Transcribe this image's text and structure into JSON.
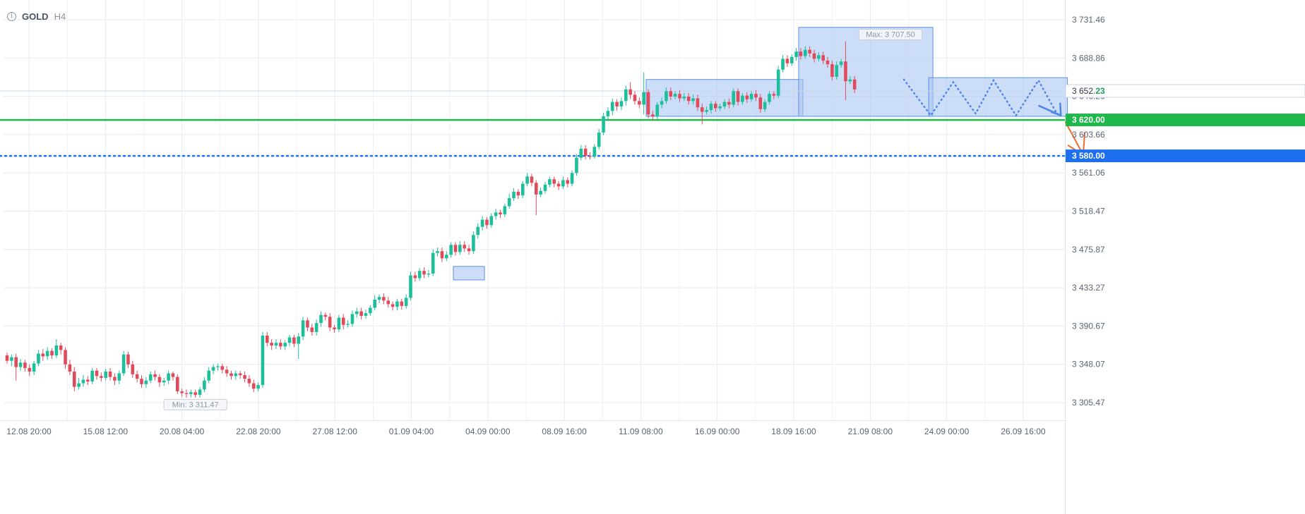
{
  "header": {
    "info_glyph": "i",
    "symbol": "GOLD",
    "timeframe": "H4"
  },
  "colors": {
    "bull": "#1bbf9a",
    "bear": "#e04b5c",
    "grid": "#e5ebf3",
    "axis_text": "#5b6473",
    "support": "#1fb84a",
    "target": "#1e6ff0",
    "box_fill": "#aac6f3",
    "box_stroke": "#5d8fe0",
    "projection": "#4f86e8",
    "arrow": "#f06a2c"
  },
  "chart_data": {
    "type": "candlestick",
    "ylim": [
      3280,
      3760
    ],
    "yticks": [
      {
        "value": 3731.46,
        "label": "3 731.46"
      },
      {
        "value": 3688.86,
        "label": "3 688.86"
      },
      {
        "value": 3646.26,
        "label": "3 646.26"
      },
      {
        "value": 3603.66,
        "label": "3 603.66"
      },
      {
        "value": 3561.06,
        "label": "3 561.06"
      },
      {
        "value": 3518.47,
        "label": "3 518.47"
      },
      {
        "value": 3475.87,
        "label": "3 475.87"
      },
      {
        "value": 3433.27,
        "label": "3 433.27"
      },
      {
        "value": 3390.67,
        "label": "3 390.67"
      },
      {
        "value": 3348.07,
        "label": "3 348.07"
      },
      {
        "value": 3305.47,
        "label": "3 305.47"
      }
    ],
    "xticks": [
      "12.08 20:00",
      "15.08 12:00",
      "20.08 04:00",
      "22.08 20:00",
      "27.08 12:00",
      "01.09 04:00",
      "04.09 00:00",
      "08.09 16:00",
      "11.09 08:00",
      "16.09 00:00",
      "18.09 16:00",
      "21.09 08:00",
      "24.09 00:00",
      "26.09 16:00"
    ],
    "current_price": {
      "value": 3652.23,
      "label_main": "3 652.",
      "label_tail": "23"
    },
    "levels": [
      {
        "name": "support",
        "value": 3620.0,
        "label": "3 620.00",
        "style": "solid"
      },
      {
        "name": "target",
        "value": 3580.0,
        "label": "3 580.00",
        "style": "dotted"
      }
    ],
    "max_marker": {
      "value": 3707.5,
      "label": "Max: 3 707.50",
      "bar": 197
    },
    "min_marker": {
      "value": 3311.47,
      "label": "Min: 3 311.47",
      "bar": 42
    },
    "boxes": [
      {
        "bar_start": 100,
        "bar_end": 106,
        "low": 3442,
        "high": 3457
      },
      {
        "bar_start": 143,
        "bar_end": 177,
        "low": 3624,
        "high": 3665
      },
      {
        "bar_start": 177,
        "bar_end": 206,
        "low": 3624,
        "high": 3723
      },
      {
        "bar_start": 206,
        "bar_end": 236,
        "low": 3624,
        "high": 3667
      }
    ],
    "projection_path": [
      [
        200,
        3665
      ],
      [
        206,
        3625
      ],
      [
        211,
        3662
      ],
      [
        216,
        3627
      ],
      [
        220,
        3664
      ],
      [
        225,
        3625
      ],
      [
        230,
        3664
      ],
      [
        234,
        3628
      ]
    ],
    "projection_arrow": {
      "from": [
        230,
        3636
      ],
      "to": [
        235,
        3625
      ]
    },
    "forecast_arrow": {
      "from": [
        236,
        3618
      ],
      "to": [
        240,
        3581
      ]
    },
    "candles": [
      [
        3358,
        3352,
        3361,
        3349
      ],
      [
        3352,
        3356,
        3359,
        3346
      ],
      [
        3356,
        3345,
        3360,
        3330
      ],
      [
        3345,
        3350,
        3354,
        3341
      ],
      [
        3350,
        3344,
        3353,
        3340
      ],
      [
        3344,
        3340,
        3348,
        3335
      ],
      [
        3340,
        3349,
        3352,
        3336
      ],
      [
        3349,
        3360,
        3364,
        3346
      ],
      [
        3360,
        3357,
        3365,
        3352
      ],
      [
        3357,
        3363,
        3367,
        3353
      ],
      [
        3363,
        3358,
        3366,
        3354
      ],
      [
        3358,
        3369,
        3376,
        3355
      ],
      [
        3369,
        3364,
        3372,
        3359
      ],
      [
        3364,
        3348,
        3367,
        3343
      ],
      [
        3348,
        3340,
        3353,
        3336
      ],
      [
        3340,
        3323,
        3345,
        3318
      ],
      [
        3323,
        3327,
        3333,
        3320
      ],
      [
        3327,
        3331,
        3336,
        3323
      ],
      [
        3331,
        3329,
        3335,
        3325
      ],
      [
        3329,
        3341,
        3344,
        3326
      ],
      [
        3341,
        3335,
        3344,
        3331
      ],
      [
        3335,
        3333,
        3339,
        3329
      ],
      [
        3333,
        3340,
        3343,
        3330
      ],
      [
        3340,
        3334,
        3344,
        3330
      ],
      [
        3334,
        3330,
        3338,
        3325
      ],
      [
        3330,
        3338,
        3341,
        3326
      ],
      [
        3338,
        3359,
        3363,
        3335
      ],
      [
        3359,
        3348,
        3362,
        3344
      ],
      [
        3348,
        3337,
        3352,
        3333
      ],
      [
        3337,
        3332,
        3341,
        3328
      ],
      [
        3332,
        3326,
        3336,
        3322
      ],
      [
        3326,
        3330,
        3334,
        3322
      ],
      [
        3330,
        3337,
        3340,
        3327
      ],
      [
        3337,
        3334,
        3341,
        3330
      ],
      [
        3334,
        3328,
        3337,
        3323
      ],
      [
        3328,
        3330,
        3333,
        3324
      ],
      [
        3330,
        3338,
        3341,
        3326
      ],
      [
        3338,
        3334,
        3340,
        3330
      ],
      [
        3334,
        3318,
        3337,
        3315
      ],
      [
        3318,
        3316,
        3321,
        3312
      ],
      [
        3316,
        3315,
        3320,
        3311
      ],
      [
        3315,
        3317,
        3320,
        3311.47
      ],
      [
        3317,
        3314,
        3320,
        3311
      ],
      [
        3314,
        3320,
        3323,
        3311
      ],
      [
        3320,
        3330,
        3334,
        3317
      ],
      [
        3330,
        3341,
        3345,
        3327
      ],
      [
        3341,
        3345,
        3348,
        3337
      ],
      [
        3345,
        3346,
        3349,
        3341
      ],
      [
        3346,
        3342,
        3349,
        3338
      ],
      [
        3342,
        3338,
        3346,
        3334
      ],
      [
        3338,
        3335,
        3341,
        3331
      ],
      [
        3335,
        3338,
        3341,
        3331
      ],
      [
        3338,
        3336,
        3341,
        3332
      ],
      [
        3336,
        3332,
        3340,
        3328
      ],
      [
        3332,
        3327,
        3336,
        3323
      ],
      [
        3327,
        3321,
        3331,
        3317
      ],
      [
        3321,
        3325,
        3328,
        3318
      ],
      [
        3325,
        3380,
        3384,
        3322
      ],
      [
        3380,
        3372,
        3384,
        3368
      ],
      [
        3372,
        3369,
        3376,
        3364
      ],
      [
        3369,
        3372,
        3376,
        3365
      ],
      [
        3372,
        3368,
        3376,
        3364
      ],
      [
        3368,
        3372,
        3375,
        3364
      ],
      [
        3372,
        3378,
        3381,
        3368
      ],
      [
        3378,
        3371,
        3381,
        3367
      ],
      [
        3371,
        3379,
        3383,
        3354
      ],
      [
        3379,
        3397,
        3401,
        3375
      ],
      [
        3397,
        3389,
        3400,
        3385
      ],
      [
        3389,
        3384,
        3393,
        3380
      ],
      [
        3384,
        3394,
        3398,
        3380
      ],
      [
        3394,
        3403,
        3407,
        3390
      ],
      [
        3403,
        3401,
        3406,
        3397
      ],
      [
        3401,
        3389,
        3405,
        3385
      ],
      [
        3389,
        3387,
        3392,
        3383
      ],
      [
        3387,
        3400,
        3403,
        3384
      ],
      [
        3400,
        3392,
        3404,
        3387
      ],
      [
        3392,
        3393,
        3397,
        3389
      ],
      [
        3393,
        3404,
        3408,
        3390
      ],
      [
        3404,
        3407,
        3411,
        3400
      ],
      [
        3407,
        3402,
        3411,
        3398
      ],
      [
        3402,
        3405,
        3409,
        3399
      ],
      [
        3405,
        3411,
        3414,
        3402
      ],
      [
        3411,
        3420,
        3425,
        3408
      ],
      [
        3420,
        3423,
        3426,
        3416
      ],
      [
        3423,
        3419,
        3427,
        3415
      ],
      [
        3419,
        3415,
        3423,
        3411
      ],
      [
        3415,
        3412,
        3418,
        3408
      ],
      [
        3412,
        3418,
        3421,
        3408
      ],
      [
        3418,
        3413,
        3421,
        3409
      ],
      [
        3413,
        3422,
        3426,
        3410
      ],
      [
        3422,
        3447,
        3451,
        3419
      ],
      [
        3447,
        3444,
        3451,
        3440
      ],
      [
        3444,
        3452,
        3455,
        3441
      ],
      [
        3452,
        3448,
        3456,
        3444
      ],
      [
        3448,
        3449,
        3453,
        3445
      ],
      [
        3449,
        3472,
        3476,
        3446
      ],
      [
        3472,
        3474,
        3478,
        3468
      ],
      [
        3474,
        3466,
        3478,
        3462
      ],
      [
        3466,
        3470,
        3474,
        3463
      ],
      [
        3470,
        3481,
        3484,
        3467
      ],
      [
        3481,
        3473,
        3484,
        3469
      ],
      [
        3473,
        3481,
        3485,
        3470
      ],
      [
        3481,
        3477,
        3485,
        3473
      ],
      [
        3477,
        3474,
        3481,
        3470
      ],
      [
        3474,
        3492,
        3496,
        3471
      ],
      [
        3492,
        3501,
        3505,
        3488
      ],
      [
        3501,
        3509,
        3513,
        3497
      ],
      [
        3509,
        3503,
        3512,
        3499
      ],
      [
        3503,
        3513,
        3516,
        3500
      ],
      [
        3513,
        3517,
        3521,
        3509
      ],
      [
        3517,
        3515,
        3520,
        3511
      ],
      [
        3515,
        3524,
        3527,
        3512
      ],
      [
        3524,
        3533,
        3538,
        3521
      ],
      [
        3533,
        3540,
        3544,
        3530
      ],
      [
        3540,
        3536,
        3543,
        3532
      ],
      [
        3536,
        3549,
        3552,
        3533
      ],
      [
        3549,
        3557,
        3561,
        3546
      ],
      [
        3557,
        3550,
        3560,
        3546
      ],
      [
        3550,
        3537,
        3553,
        3514
      ],
      [
        3537,
        3541,
        3545,
        3534
      ],
      [
        3541,
        3548,
        3551,
        3538
      ],
      [
        3548,
        3554,
        3557,
        3545
      ],
      [
        3554,
        3549,
        3557,
        3545
      ],
      [
        3549,
        3546,
        3552,
        3542
      ],
      [
        3546,
        3553,
        3557,
        3543
      ],
      [
        3553,
        3549,
        3556,
        3545
      ],
      [
        3549,
        3561,
        3564,
        3546
      ],
      [
        3561,
        3578,
        3582,
        3558
      ],
      [
        3578,
        3588,
        3592,
        3575
      ],
      [
        3588,
        3580,
        3592,
        3576
      ],
      [
        3580,
        3579,
        3584,
        3576
      ],
      [
        3579,
        3590,
        3593,
        3577
      ],
      [
        3590,
        3606,
        3610,
        3587
      ],
      [
        3606,
        3624,
        3628,
        3603
      ],
      [
        3624,
        3630,
        3634,
        3620
      ],
      [
        3630,
        3640,
        3644,
        3625
      ],
      [
        3640,
        3635,
        3643,
        3630
      ],
      [
        3635,
        3641,
        3645,
        3631
      ],
      [
        3641,
        3654,
        3658,
        3636
      ],
      [
        3654,
        3648,
        3662,
        3643
      ],
      [
        3648,
        3641,
        3652,
        3637
      ],
      [
        3641,
        3637,
        3645,
        3633
      ],
      [
        3637,
        3651,
        3673,
        3626
      ],
      [
        3651,
        3626,
        3654,
        3622
      ],
      [
        3626,
        3624,
        3630,
        3620
      ],
      [
        3624,
        3637,
        3640,
        3621
      ],
      [
        3637,
        3641,
        3645,
        3633
      ],
      [
        3641,
        3652,
        3656,
        3638
      ],
      [
        3652,
        3646,
        3656,
        3642
      ],
      [
        3646,
        3649,
        3652,
        3643
      ],
      [
        3649,
        3644,
        3653,
        3640
      ],
      [
        3644,
        3646,
        3650,
        3641
      ],
      [
        3646,
        3641,
        3650,
        3637
      ],
      [
        3641,
        3644,
        3648,
        3637
      ],
      [
        3644,
        3634,
        3648,
        3630
      ],
      [
        3634,
        3629,
        3638,
        3615
      ],
      [
        3629,
        3631,
        3635,
        3626
      ],
      [
        3631,
        3638,
        3641,
        3627
      ],
      [
        3638,
        3633,
        3641,
        3629
      ],
      [
        3633,
        3635,
        3638,
        3630
      ],
      [
        3635,
        3640,
        3643,
        3632
      ],
      [
        3640,
        3637,
        3644,
        3633
      ],
      [
        3637,
        3652,
        3655,
        3634
      ],
      [
        3652,
        3640,
        3655,
        3636
      ],
      [
        3640,
        3647,
        3650,
        3637
      ],
      [
        3647,
        3643,
        3651,
        3639
      ],
      [
        3643,
        3649,
        3652,
        3640
      ],
      [
        3649,
        3645,
        3653,
        3641
      ],
      [
        3645,
        3632,
        3649,
        3628
      ],
      [
        3632,
        3640,
        3643,
        3629
      ],
      [
        3640,
        3649,
        3652,
        3637
      ],
      [
        3649,
        3647,
        3652,
        3643
      ],
      [
        3647,
        3676,
        3680,
        3644
      ],
      [
        3676,
        3688,
        3692,
        3673
      ],
      [
        3688,
        3683,
        3692,
        3679
      ],
      [
        3683,
        3690,
        3693,
        3680
      ],
      [
        3690,
        3696,
        3700,
        3686
      ],
      [
        3696,
        3691,
        3700,
        3687
      ],
      [
        3691,
        3698,
        3702,
        3688
      ],
      [
        3698,
        3694,
        3702,
        3690
      ],
      [
        3694,
        3688,
        3698,
        3684
      ],
      [
        3688,
        3692,
        3695,
        3685
      ],
      [
        3692,
        3686,
        3696,
        3682
      ],
      [
        3686,
        3682,
        3690,
        3678
      ],
      [
        3682,
        3668,
        3686,
        3664
      ],
      [
        3668,
        3681,
        3685,
        3665
      ],
      [
        3681,
        3685,
        3688,
        3678
      ],
      [
        3685,
        3663,
        3707.5,
        3642
      ],
      [
        3663,
        3665,
        3669,
        3660
      ],
      [
        3665,
        3654,
        3669,
        3650
      ]
    ]
  }
}
